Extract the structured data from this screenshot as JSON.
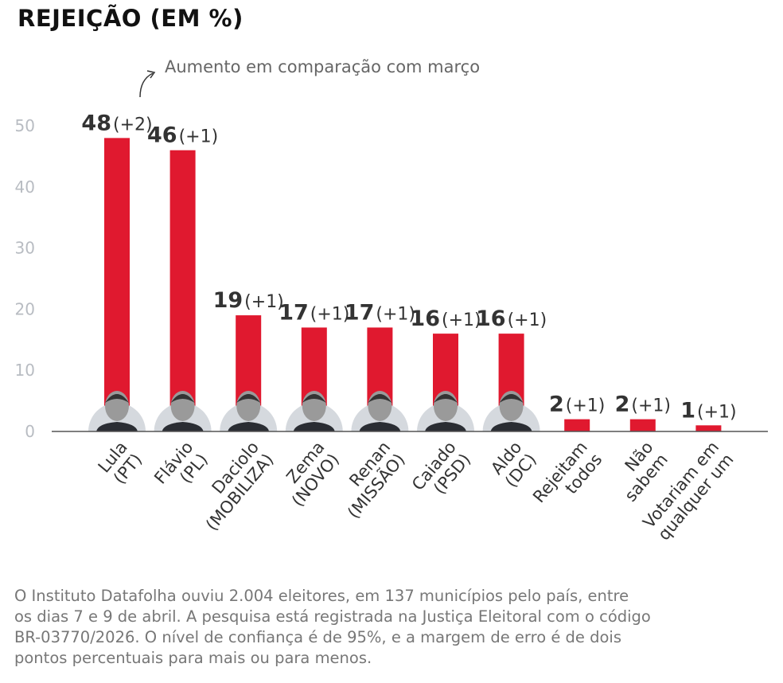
{
  "chart_data": {
    "type": "bar",
    "title": "REJEIÇÃO (EM %)",
    "annotation": "Aumento em comparação com março",
    "ylim": [
      0,
      50
    ],
    "yticks": [
      "0",
      "10",
      "20",
      "30",
      "40",
      "50"
    ],
    "grid": false,
    "bar_color": "#e0192f",
    "categories": [
      [
        "Lula",
        "(PT)"
      ],
      [
        "Flávio",
        "(PL)"
      ],
      [
        "Daciolo",
        "(MOBILIZA)"
      ],
      [
        "Zema",
        "(NOVO)"
      ],
      [
        "Renan",
        "(MISSÃO)"
      ],
      [
        "Caiado",
        "(PSD)"
      ],
      [
        "Aldo",
        "(DC)"
      ],
      [
        "Rejeitam",
        "todos"
      ],
      [
        "Não",
        "sabem"
      ],
      [
        "Votariam em",
        "qualquer um"
      ]
    ],
    "values": [
      48,
      46,
      19,
      17,
      17,
      16,
      16,
      2,
      2,
      1
    ],
    "changes": [
      "(+2)",
      "(+1)",
      "(+1)",
      "(+1)",
      "(+1)",
      "(+1)",
      "(+1)",
      "(+1)",
      "(+1)",
      "(+1)"
    ],
    "has_photo": [
      true,
      true,
      true,
      true,
      true,
      true,
      true,
      false,
      false,
      false
    ]
  },
  "footnote": "O Instituto Datafolha ouviu 2.004 eleitores, em 137 municípios pelo país, entre os dias 7 e 9 de abril. A pesquisa está registrada na Justiça Eleitoral com o código BR-03770/2026. O nível de confiança é de 95%, e a margem de erro é de dois pontos percentuais para mais ou para menos."
}
